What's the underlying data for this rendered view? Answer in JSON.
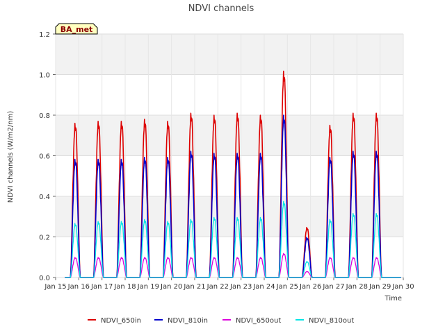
{
  "chart_data": {
    "type": "line",
    "title": "NDVI channels",
    "xlabel": "Time",
    "ylabel": "NDVI channels (W/m2/nm)",
    "ylim": [
      0,
      1.2
    ],
    "xlim": [
      15,
      30
    ],
    "yticks": [
      "0.0",
      "0.2",
      "0.4",
      "0.6",
      "0.8",
      "1.0",
      "1.2"
    ],
    "xticks": [
      "Jan 15",
      "Jan 16",
      "Jan 17",
      "Jan 18",
      "Jan 19",
      "Jan 20",
      "Jan 21",
      "Jan 22",
      "Jan 23",
      "Jan 24",
      "Jan 25",
      "Jan 26",
      "Jan 27",
      "Jan 28",
      "Jan 29",
      "Jan 30"
    ],
    "badge": "BA_met",
    "legend_position": "bottom",
    "data_start_day": 15.4,
    "data_end_day": 29.9,
    "days": [
      15.85,
      16.85,
      17.85,
      18.85,
      19.85,
      20.85,
      21.85,
      22.85,
      23.85,
      24.85,
      25.85,
      26.85,
      27.85,
      28.85
    ],
    "series": [
      {
        "name": "NDVI_650in",
        "color": "#dd0000",
        "peaks": [
          0.77,
          0.78,
          0.78,
          0.79,
          0.78,
          0.82,
          0.81,
          0.82,
          0.81,
          1.03,
          0.25,
          0.76,
          0.82,
          0.82
        ]
      },
      {
        "name": "NDVI_810in",
        "color": "#0000cc",
        "peaks": [
          0.59,
          0.59,
          0.59,
          0.6,
          0.6,
          0.63,
          0.62,
          0.62,
          0.62,
          0.81,
          0.2,
          0.6,
          0.63,
          0.63
        ]
      },
      {
        "name": "NDVI_650out",
        "color": "#dd00dd",
        "peaks": [
          0.1,
          0.1,
          0.1,
          0.1,
          0.1,
          0.1,
          0.1,
          0.1,
          0.1,
          0.12,
          0.03,
          0.1,
          0.1,
          0.1
        ]
      },
      {
        "name": "NDVI_810out",
        "color": "#00e5e5",
        "peaks": [
          0.27,
          0.28,
          0.28,
          0.29,
          0.28,
          0.29,
          0.3,
          0.3,
          0.3,
          0.38,
          0.08,
          0.29,
          0.32,
          0.32
        ]
      }
    ]
  }
}
